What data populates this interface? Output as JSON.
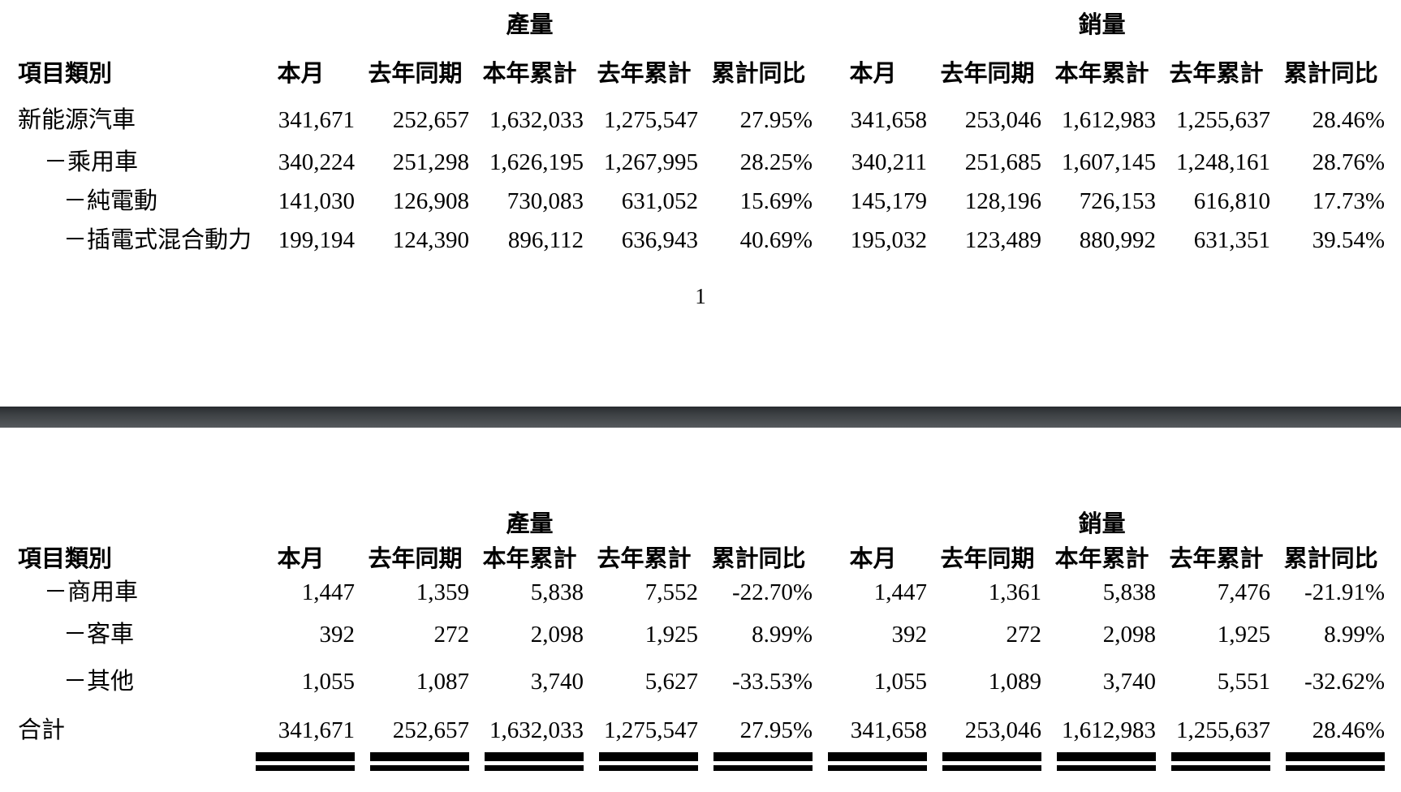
{
  "page1": {
    "group_headers": {
      "production": "產量",
      "sales": "銷量"
    },
    "column_headers": [
      "項目類別",
      "本月",
      "去年同期",
      "本年累計",
      "去年累計",
      "累計同比",
      "本月",
      "去年同期",
      "本年累計",
      "去年累計",
      "累計同比"
    ],
    "rows": [
      {
        "label": "新能源汽車",
        "indent": 0,
        "values": [
          "341,671",
          "252,657",
          "1,632,033",
          "1,275,547",
          "27.95%",
          "341,658",
          "253,046",
          "1,612,983",
          "1,255,637",
          "28.46%"
        ]
      },
      {
        "label": "－乘用車",
        "indent": 1,
        "values": [
          "340,224",
          "251,298",
          "1,626,195",
          "1,267,995",
          "28.25%",
          "340,211",
          "251,685",
          "1,607,145",
          "1,248,161",
          "28.76%"
        ]
      },
      {
        "label": "－純電動",
        "indent": 2,
        "values": [
          "141,030",
          "126,908",
          "730,083",
          "631,052",
          "15.69%",
          "145,179",
          "128,196",
          "726,153",
          "616,810",
          "17.73%"
        ]
      },
      {
        "label": "－插電式混合動力",
        "indent": 2,
        "values": [
          "199,194",
          "124,390",
          "896,112",
          "636,943",
          "40.69%",
          "195,032",
          "123,489",
          "880,992",
          "631,351",
          "39.54%"
        ]
      }
    ],
    "page_number": "1"
  },
  "page2": {
    "group_headers": {
      "production": "產量",
      "sales": "銷量"
    },
    "column_headers": [
      "項目類別",
      "本月",
      "去年同期",
      "本年累計",
      "去年累計",
      "累計同比",
      "本月",
      "去年同期",
      "本年累計",
      "去年累計",
      "累計同比"
    ],
    "rows": [
      {
        "label": "－商用車",
        "indent": 1,
        "values": [
          "1,447",
          "1,359",
          "5,838",
          "7,552",
          "-22.70%",
          "1,447",
          "1,361",
          "5,838",
          "7,476",
          "-21.91%"
        ]
      },
      {
        "label": "－客車",
        "indent": 2,
        "values": [
          "392",
          "272",
          "2,098",
          "1,925",
          "8.99%",
          "392",
          "272",
          "2,098",
          "1,925",
          "8.99%"
        ]
      },
      {
        "label": "－其他",
        "indent": 2,
        "values": [
          "1,055",
          "1,087",
          "3,740",
          "5,627",
          "-33.53%",
          "1,055",
          "1,089",
          "3,740",
          "5,551",
          "-32.62%"
        ]
      }
    ],
    "total_row": {
      "label": "合計",
      "values": [
        "341,671",
        "252,657",
        "1,632,033",
        "1,275,547",
        "27.95%",
        "341,658",
        "253,046",
        "1,612,983",
        "1,255,637",
        "28.46%"
      ]
    }
  }
}
